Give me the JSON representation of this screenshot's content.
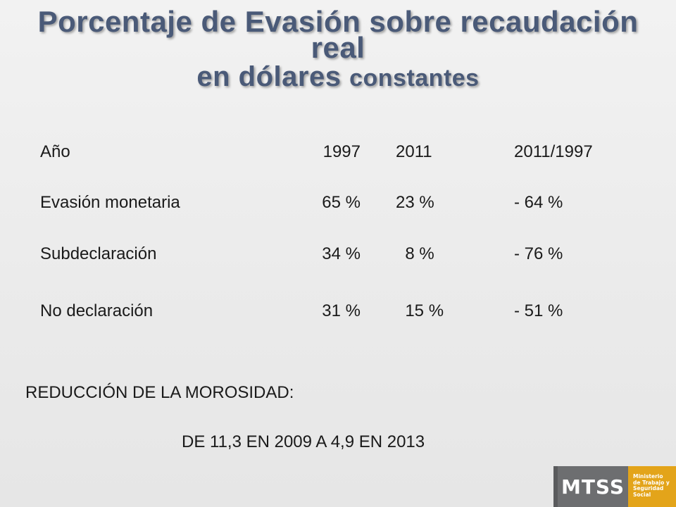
{
  "title": {
    "line1": "Porcentaje de Evasión sobre recaudación",
    "line2": "real",
    "line3_main": "en dólares ",
    "line3_small": "constantes"
  },
  "table": {
    "header": [
      "Año",
      "1997",
      "2011",
      "2011/1997"
    ],
    "rows": [
      [
        "Evasión monetaria",
        "65 %",
        "23 %",
        "- 64 %"
      ],
      [
        "Subdeclaración",
        "34 %",
        "  8 %",
        "- 76 %"
      ],
      [
        "No declaración",
        "31 %",
        "  15 %",
        "- 51 %"
      ]
    ]
  },
  "morosidad": {
    "heading": "REDUCCIÓN DE LA MOROSIDAD:",
    "detail": "DE 11,3 EN 2009 A 4,9 EN 2013"
  },
  "logo": {
    "acronym": "MTSS",
    "name_lines": [
      "Ministerio",
      "de Trabajo y",
      "Seguridad",
      "Social"
    ]
  },
  "colors": {
    "title": "#4a5a78",
    "logo_gray": "#6d6e70",
    "logo_gold": "#e3a41a"
  }
}
